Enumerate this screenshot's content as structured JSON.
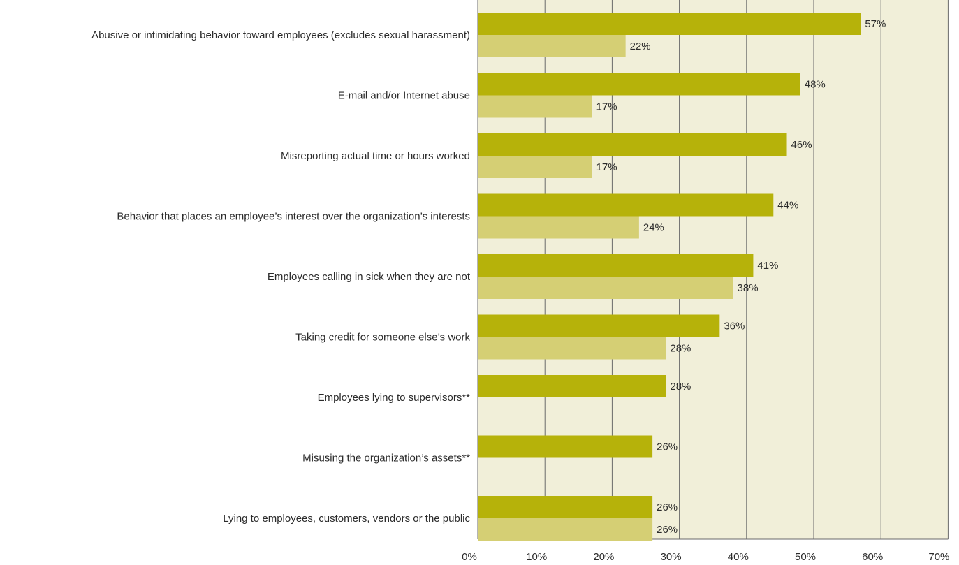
{
  "chart_data": {
    "type": "bar",
    "orientation": "horizontal",
    "categories": [
      "Abusive or intimidating behavior toward employees (excludes sexual harassment)",
      "E-mail and/or Internet abuse",
      "Misreporting actual time or hours worked",
      "Behavior that places an employee’s interest over the organization’s interests",
      "Employees calling in sick when they are not",
      "Taking credit for someone else’s work",
      "Employees lying to supervisors**",
      "Misusing the organization’s assets**",
      "Lying to employees, customers, vendors or the public"
    ],
    "series": [
      {
        "values": [
          57,
          48,
          46,
          44,
          41,
          36,
          28,
          26,
          26
        ],
        "labels": [
          "57%",
          "48%",
          "46%",
          "44%",
          "41%",
          "36%",
          "28%",
          "26%",
          "26%"
        ],
        "color": "#b6b20a"
      },
      {
        "values": [
          22,
          17,
          17,
          24,
          38,
          28,
          null,
          null,
          26
        ],
        "labels": [
          "22%",
          "17%",
          "17%",
          "24%",
          "38%",
          "28%",
          null,
          null,
          "26%"
        ],
        "color": "#d5cf74"
      }
    ],
    "xlim": [
      0,
      70
    ],
    "xticks": [
      0,
      10,
      20,
      30,
      40,
      50,
      60,
      70
    ],
    "xtick_labels": [
      "0%",
      "10%",
      "20%",
      "30%",
      "40%",
      "50%",
      "60%",
      "70%"
    ],
    "grid": true,
    "plot_background": "#f1efd9",
    "grid_color": "#6a6a6a"
  }
}
